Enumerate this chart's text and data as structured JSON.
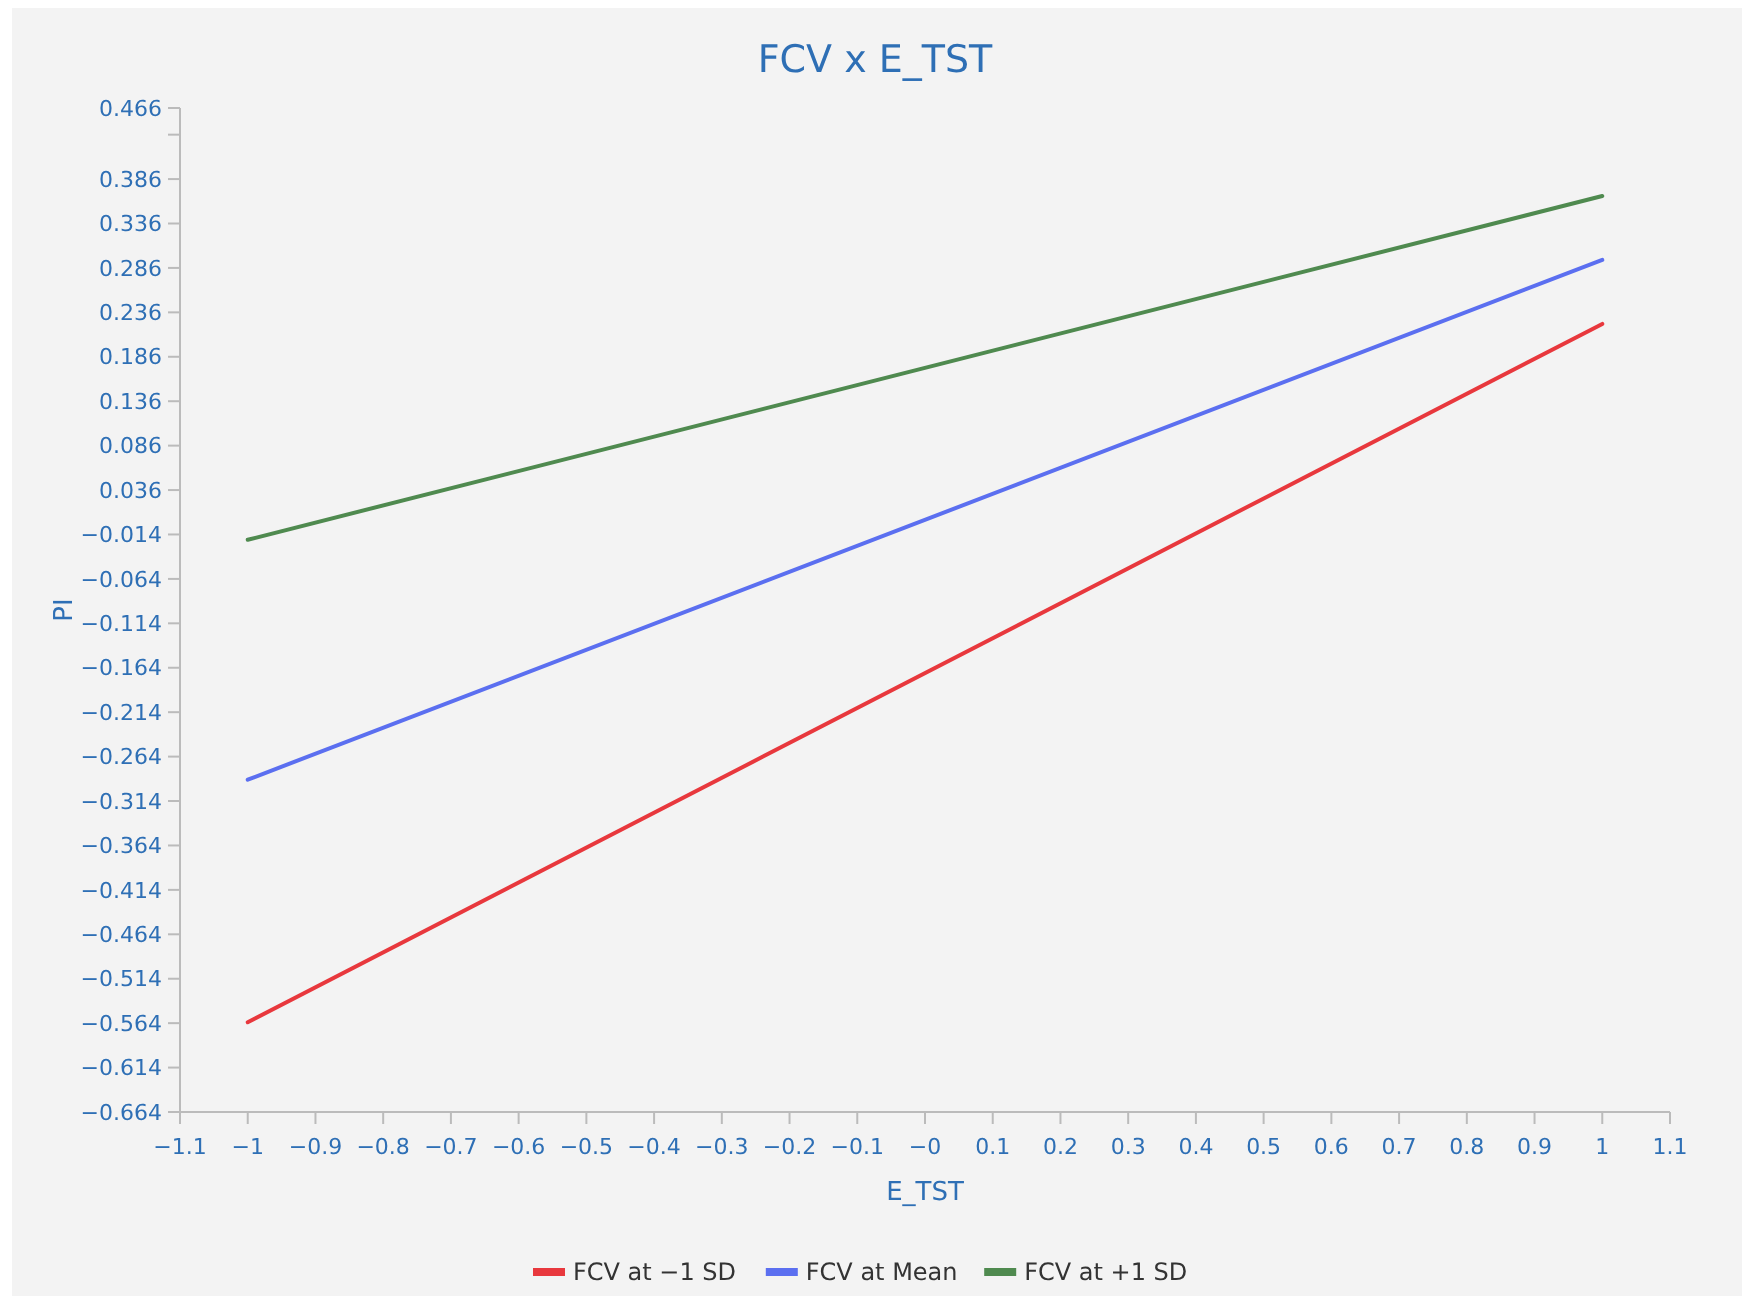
{
  "chart_data": {
    "type": "line",
    "title": "FCV x E_TST",
    "xlabel": "E_TST",
    "ylabel": "PI",
    "x": [
      -1,
      1
    ],
    "series": [
      {
        "name": "FCV at −1 SD",
        "color": "#e8383d",
        "values": [
          -0.563,
          0.223
        ]
      },
      {
        "name": "FCV at Mean",
        "color": "#5b6ff0",
        "values": [
          -0.29,
          0.295
        ]
      },
      {
        "name": "FCV at +1 SD",
        "color": "#4f8a4f",
        "values": [
          -0.02,
          0.367
        ]
      }
    ],
    "xlim": [
      -1.1,
      1.1
    ],
    "xticks": [
      {
        "value": -1.1,
        "label": "−1.1"
      },
      {
        "value": -1,
        "label": "−1"
      },
      {
        "value": -0.9,
        "label": "−0.9"
      },
      {
        "value": -0.8,
        "label": "−0.8"
      },
      {
        "value": -0.7,
        "label": "−0.7"
      },
      {
        "value": -0.6,
        "label": "−0.6"
      },
      {
        "value": -0.5,
        "label": "−0.5"
      },
      {
        "value": -0.4,
        "label": "−0.4"
      },
      {
        "value": -0.3,
        "label": "−0.3"
      },
      {
        "value": -0.2,
        "label": "−0.2"
      },
      {
        "value": -0.1,
        "label": "−0.1"
      },
      {
        "value": 0,
        "label": "−0"
      },
      0.1,
      0.2,
      0.3,
      0.4,
      0.5,
      0.6,
      0.7,
      0.8,
      0.9,
      1,
      1.1
    ],
    "ylim": [
      -0.664,
      0.466
    ],
    "yticks": [
      {
        "value": -0.664,
        "label": "−0.664"
      },
      {
        "value": -0.614,
        "label": "−0.614"
      },
      {
        "value": -0.564,
        "label": "−0.564"
      },
      {
        "value": -0.514,
        "label": "−0.514"
      },
      {
        "value": -0.464,
        "label": "−0.464"
      },
      {
        "value": -0.414,
        "label": "−0.414"
      },
      {
        "value": -0.364,
        "label": "−0.364"
      },
      {
        "value": -0.314,
        "label": "−0.314"
      },
      {
        "value": -0.264,
        "label": "−0.264"
      },
      {
        "value": -0.214,
        "label": "−0.214"
      },
      {
        "value": -0.164,
        "label": "−0.164"
      },
      {
        "value": -0.114,
        "label": "−0.114"
      },
      {
        "value": -0.064,
        "label": "−0.064"
      },
      {
        "value": -0.014,
        "label": "−0.014"
      },
      0.036,
      0.086,
      0.136,
      0.186,
      0.236,
      0.286,
      0.336,
      0.386,
      {
        "value": 0.436,
        "label": null
      },
      0.466
    ],
    "legend": "bottom",
    "grid": false,
    "marker": "none",
    "line_style": "solid"
  }
}
